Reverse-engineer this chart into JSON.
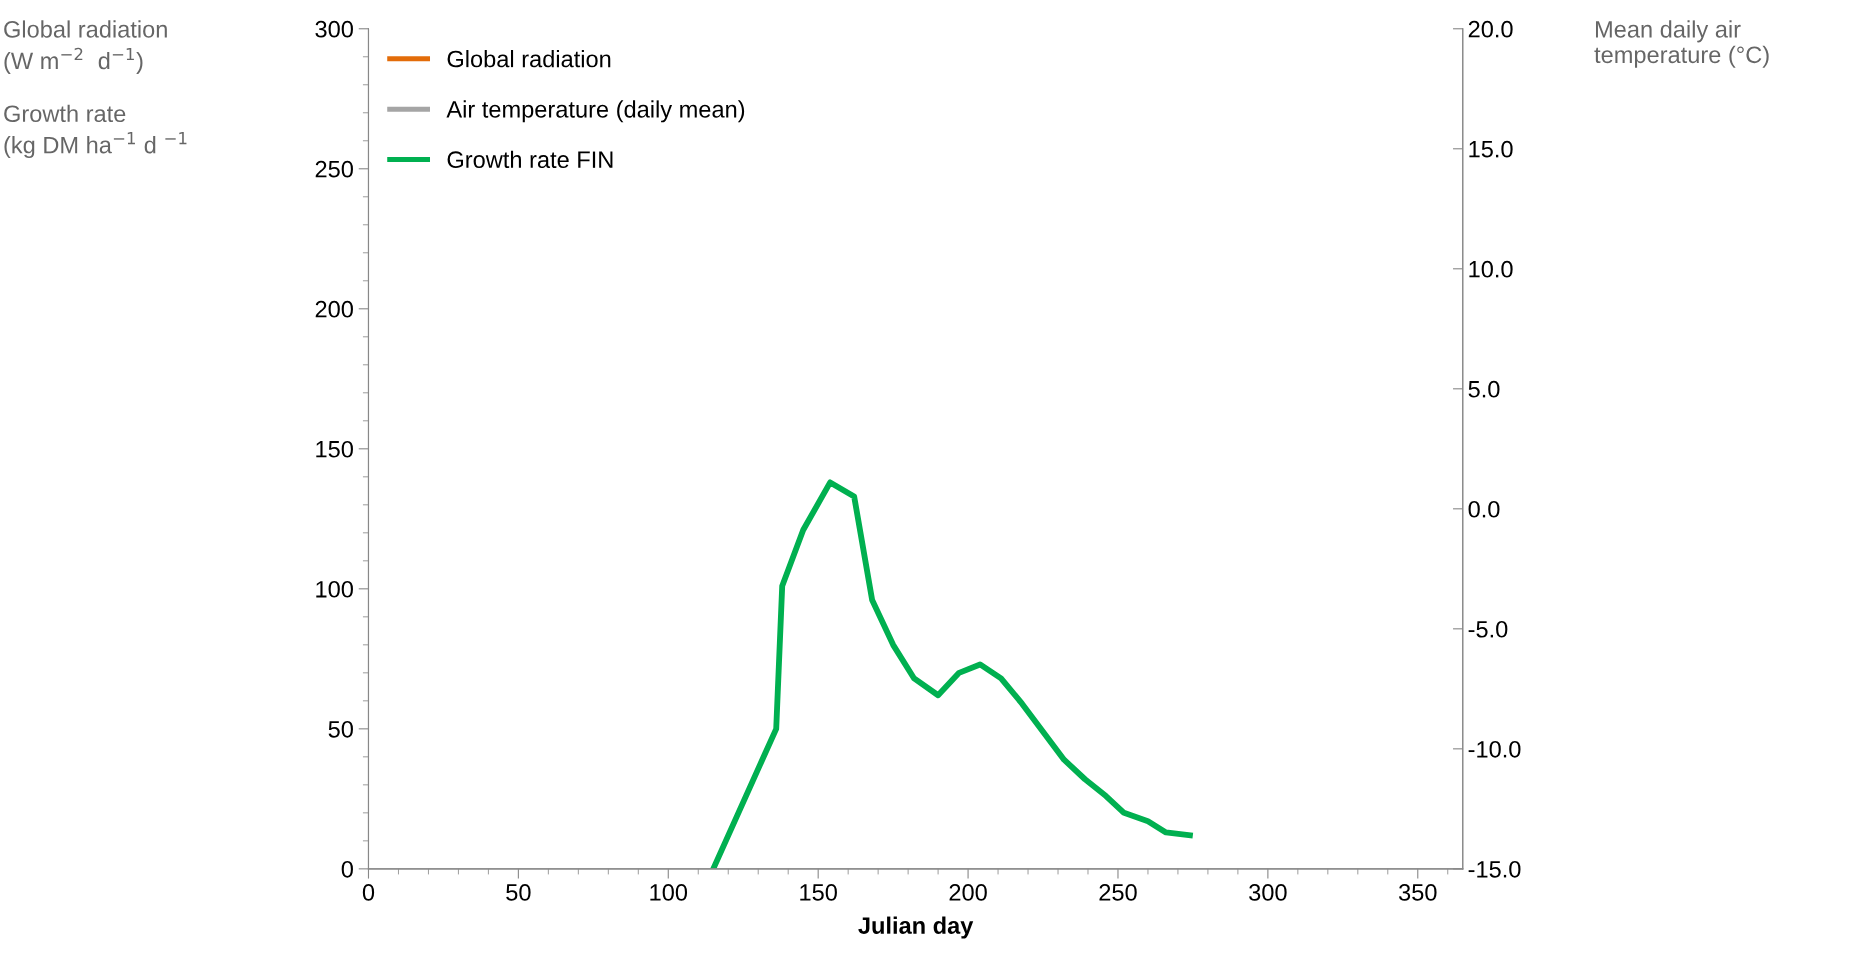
{
  "chart_data": {
    "type": "line",
    "ylabel": "Global radiation\n(W m$^{−2}$  d$^{−1}$)\n\nGrowth rate\n(kg DM ha$^{−1}$ d $^{−1}$",
    "y2label": "Mean daily air\ntemperature (°C)",
    "xlabel": "Julian day",
    "x": [
      115,
      136,
      138,
      145,
      154,
      162,
      168,
      175,
      182,
      190,
      197,
      204,
      211,
      218,
      225,
      232,
      239,
      246,
      252,
      260,
      266,
      274
    ],
    "series": [
      {
        "name": "Global radiation",
        "color": "#e36c09",
        "values": [
          null,
          null,
          null,
          null,
          null,
          null,
          null,
          null,
          null,
          null,
          null,
          null,
          null,
          null,
          null,
          null,
          null,
          null,
          null,
          null,
          null,
          null
        ]
      },
      {
        "name": "Air temperature (daily mean)",
        "color": "#a5a5a5",
        "values": [
          null,
          null,
          null,
          null,
          null,
          null,
          null,
          null,
          null,
          null,
          null,
          null,
          null,
          null,
          null,
          null,
          null,
          null,
          null,
          null,
          null,
          null
        ]
      },
      {
        "name": "Growth rate FIN",
        "color": "#00b050",
        "values": [
          0,
          50,
          101,
          121,
          138,
          133,
          96,
          80,
          68,
          62,
          70,
          73,
          68,
          59,
          49,
          39,
          32,
          26,
          20,
          17,
          13,
          12
        ]
      }
    ],
    "xlim": [
      0,
      365
    ],
    "xticks": [
      0,
      50,
      100,
      150,
      200,
      250,
      300,
      350
    ],
    "ylim": [
      0,
      300
    ],
    "yticks": [
      0,
      50,
      100,
      150,
      200,
      250,
      300
    ],
    "y2lim": [
      -15,
      20
    ],
    "y2ticks": [
      {
        "value": -15,
        "label": "-15.0"
      },
      {
        "value": -10,
        "label": "-10.0"
      },
      {
        "value": -5,
        "label": "-5.0"
      },
      {
        "value": 0,
        "label": "0.0"
      },
      {
        "value": 5,
        "label": "5.0"
      },
      {
        "value": 10,
        "label": "10.0"
      },
      {
        "value": 15,
        "label": "15.0"
      },
      {
        "value": 20,
        "label": "20.0"
      }
    ],
    "legend": "top left",
    "grid": false,
    "marker": "none",
    "line_style": "solid"
  }
}
